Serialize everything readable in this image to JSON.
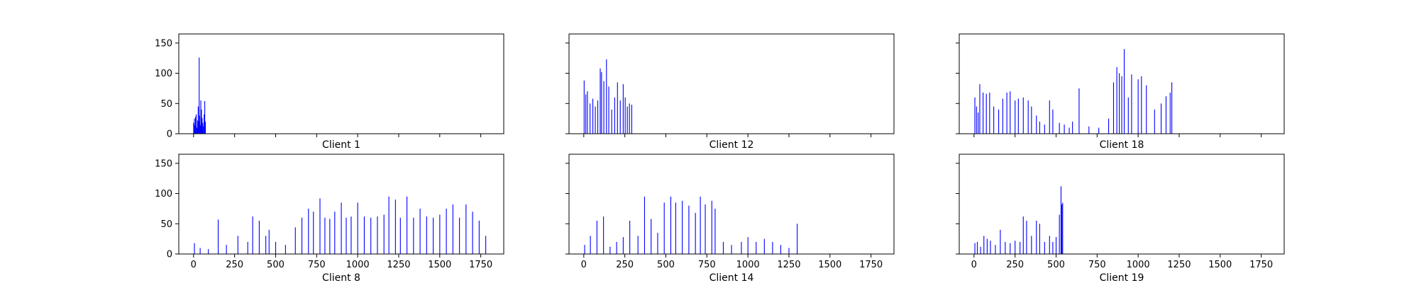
{
  "figure": {
    "background": "#ffffff",
    "bar_color": "#0000ff",
    "layout": "2 rows x 3 columns, shared x and y axes"
  },
  "chart_data": [
    {
      "type": "bar",
      "xlabel": "Client 1",
      "xlim": [
        -90,
        1890
      ],
      "ylim": [
        0,
        165
      ],
      "xticks": [
        0,
        250,
        500,
        750,
        1000,
        1250,
        1500,
        1750
      ],
      "yticks": [
        0,
        50,
        100,
        150
      ],
      "show_xtick_labels": false,
      "show_ytick_labels": true,
      "grid": false,
      "x_extent": [
        0,
        75
      ],
      "bars": [
        [
          0,
          18
        ],
        [
          5,
          25
        ],
        [
          8,
          14
        ],
        [
          12,
          28
        ],
        [
          16,
          32
        ],
        [
          20,
          10
        ],
        [
          24,
          22
        ],
        [
          28,
          45
        ],
        [
          31,
          20
        ],
        [
          34,
          126
        ],
        [
          37,
          30
        ],
        [
          40,
          14
        ],
        [
          44,
          55
        ],
        [
          48,
          40
        ],
        [
          52,
          26
        ],
        [
          56,
          18
        ],
        [
          60,
          12
        ],
        [
          64,
          32
        ],
        [
          68,
          54
        ],
        [
          72,
          20
        ]
      ]
    },
    {
      "type": "bar",
      "xlabel": "Client 12",
      "xlim": [
        -90,
        1890
      ],
      "ylim": [
        0,
        165
      ],
      "xticks": [
        0,
        250,
        500,
        750,
        1000,
        1250,
        1500,
        1750
      ],
      "yticks": [
        0,
        50,
        100,
        150
      ],
      "show_xtick_labels": false,
      "show_ytick_labels": false,
      "grid": false,
      "x_extent": [
        0,
        300
      ],
      "bars": [
        [
          2,
          88
        ],
        [
          12,
          65
        ],
        [
          22,
          70
        ],
        [
          38,
          50
        ],
        [
          55,
          58
        ],
        [
          70,
          45
        ],
        [
          85,
          55
        ],
        [
          100,
          108
        ],
        [
          108,
          102
        ],
        [
          122,
          87
        ],
        [
          138,
          123
        ],
        [
          152,
          78
        ],
        [
          170,
          40
        ],
        [
          188,
          60
        ],
        [
          205,
          85
        ],
        [
          222,
          55
        ],
        [
          240,
          82
        ],
        [
          252,
          60
        ],
        [
          265,
          45
        ],
        [
          278,
          50
        ],
        [
          292,
          48
        ]
      ]
    },
    {
      "type": "bar",
      "xlabel": "Client 18",
      "xlim": [
        -90,
        1890
      ],
      "ylim": [
        0,
        165
      ],
      "xticks": [
        0,
        250,
        500,
        750,
        1000,
        1250,
        1500,
        1750
      ],
      "yticks": [
        0,
        50,
        100,
        150
      ],
      "show_xtick_labels": false,
      "show_ytick_labels": false,
      "grid": false,
      "x_extent": [
        0,
        1210
      ],
      "bars": [
        [
          5,
          60
        ],
        [
          15,
          45
        ],
        [
          25,
          35
        ],
        [
          35,
          82
        ],
        [
          55,
          68
        ],
        [
          75,
          66
        ],
        [
          95,
          68
        ],
        [
          120,
          45
        ],
        [
          150,
          40
        ],
        [
          175,
          58
        ],
        [
          200,
          68
        ],
        [
          220,
          70
        ],
        [
          250,
          55
        ],
        [
          270,
          58
        ],
        [
          300,
          60
        ],
        [
          330,
          55
        ],
        [
          350,
          45
        ],
        [
          380,
          30
        ],
        [
          400,
          20
        ],
        [
          430,
          15
        ],
        [
          460,
          55
        ],
        [
          480,
          40
        ],
        [
          520,
          18
        ],
        [
          550,
          15
        ],
        [
          580,
          10
        ],
        [
          600,
          20
        ],
        [
          640,
          75
        ],
        [
          700,
          12
        ],
        [
          760,
          10
        ],
        [
          820,
          25
        ],
        [
          850,
          85
        ],
        [
          870,
          110
        ],
        [
          885,
          100
        ],
        [
          900,
          95
        ],
        [
          915,
          140
        ],
        [
          940,
          60
        ],
        [
          960,
          98
        ],
        [
          1000,
          90
        ],
        [
          1020,
          95
        ],
        [
          1050,
          80
        ],
        [
          1100,
          40
        ],
        [
          1140,
          50
        ],
        [
          1170,
          62
        ],
        [
          1195,
          68
        ],
        [
          1205,
          85
        ]
      ]
    },
    {
      "type": "bar",
      "xlabel": "Client 8",
      "xlim": [
        -90,
        1890
      ],
      "ylim": [
        0,
        165
      ],
      "xticks": [
        0,
        250,
        500,
        750,
        1000,
        1250,
        1500,
        1750
      ],
      "yticks": [
        0,
        50,
        100,
        150
      ],
      "show_xtick_labels": true,
      "show_ytick_labels": true,
      "grid": false,
      "x_extent": [
        0,
        1800
      ],
      "bars": [
        [
          5,
          18
        ],
        [
          40,
          10
        ],
        [
          90,
          8
        ],
        [
          150,
          57
        ],
        [
          200,
          15
        ],
        [
          270,
          30
        ],
        [
          330,
          20
        ],
        [
          360,
          62
        ],
        [
          400,
          55
        ],
        [
          440,
          30
        ],
        [
          460,
          40
        ],
        [
          500,
          20
        ],
        [
          560,
          15
        ],
        [
          620,
          44
        ],
        [
          660,
          60
        ],
        [
          700,
          75
        ],
        [
          730,
          70
        ],
        [
          770,
          92
        ],
        [
          800,
          60
        ],
        [
          830,
          58
        ],
        [
          860,
          70
        ],
        [
          900,
          85
        ],
        [
          930,
          60
        ],
        [
          960,
          62
        ],
        [
          1000,
          85
        ],
        [
          1040,
          62
        ],
        [
          1080,
          60
        ],
        [
          1120,
          62
        ],
        [
          1160,
          65
        ],
        [
          1190,
          95
        ],
        [
          1230,
          90
        ],
        [
          1260,
          60
        ],
        [
          1300,
          95
        ],
        [
          1340,
          60
        ],
        [
          1380,
          75
        ],
        [
          1420,
          62
        ],
        [
          1460,
          60
        ],
        [
          1500,
          65
        ],
        [
          1540,
          75
        ],
        [
          1580,
          82
        ],
        [
          1620,
          60
        ],
        [
          1660,
          82
        ],
        [
          1700,
          70
        ],
        [
          1740,
          55
        ],
        [
          1780,
          30
        ]
      ]
    },
    {
      "type": "bar",
      "xlabel": "Client 14",
      "xlim": [
        -90,
        1890
      ],
      "ylim": [
        0,
        165
      ],
      "xticks": [
        0,
        250,
        500,
        750,
        1000,
        1250,
        1500,
        1750
      ],
      "yticks": [
        0,
        50,
        100,
        150
      ],
      "show_xtick_labels": true,
      "show_ytick_labels": false,
      "grid": false,
      "x_extent": [
        0,
        1310
      ],
      "bars": [
        [
          5,
          15
        ],
        [
          40,
          30
        ],
        [
          80,
          55
        ],
        [
          120,
          62
        ],
        [
          160,
          12
        ],
        [
          200,
          20
        ],
        [
          240,
          28
        ],
        [
          280,
          55
        ],
        [
          330,
          30
        ],
        [
          370,
          95
        ],
        [
          410,
          58
        ],
        [
          450,
          35
        ],
        [
          490,
          85
        ],
        [
          530,
          95
        ],
        [
          560,
          85
        ],
        [
          600,
          88
        ],
        [
          640,
          80
        ],
        [
          680,
          68
        ],
        [
          710,
          95
        ],
        [
          740,
          82
        ],
        [
          780,
          88
        ],
        [
          800,
          75
        ],
        [
          850,
          20
        ],
        [
          900,
          15
        ],
        [
          960,
          20
        ],
        [
          1000,
          28
        ],
        [
          1050,
          20
        ],
        [
          1100,
          25
        ],
        [
          1150,
          20
        ],
        [
          1200,
          15
        ],
        [
          1250,
          10
        ],
        [
          1300,
          50
        ]
      ]
    },
    {
      "type": "bar",
      "xlabel": "Client 19",
      "xlim": [
        -90,
        1890
      ],
      "ylim": [
        0,
        165
      ],
      "xticks": [
        0,
        250,
        500,
        750,
        1000,
        1250,
        1500,
        1750
      ],
      "yticks": [
        0,
        50,
        100,
        150
      ],
      "show_xtick_labels": true,
      "show_ytick_labels": false,
      "grid": false,
      "x_extent": [
        0,
        550
      ],
      "bars": [
        [
          5,
          18
        ],
        [
          20,
          20
        ],
        [
          40,
          12
        ],
        [
          60,
          30
        ],
        [
          80,
          25
        ],
        [
          100,
          22
        ],
        [
          130,
          15
        ],
        [
          160,
          40
        ],
        [
          190,
          20
        ],
        [
          220,
          18
        ],
        [
          250,
          22
        ],
        [
          280,
          20
        ],
        [
          300,
          62
        ],
        [
          320,
          55
        ],
        [
          350,
          30
        ],
        [
          380,
          55
        ],
        [
          400,
          50
        ],
        [
          430,
          20
        ],
        [
          460,
          30
        ],
        [
          480,
          20
        ],
        [
          500,
          28
        ],
        [
          520,
          65
        ],
        [
          530,
          112
        ],
        [
          535,
          82
        ],
        [
          540,
          85
        ]
      ]
    }
  ]
}
